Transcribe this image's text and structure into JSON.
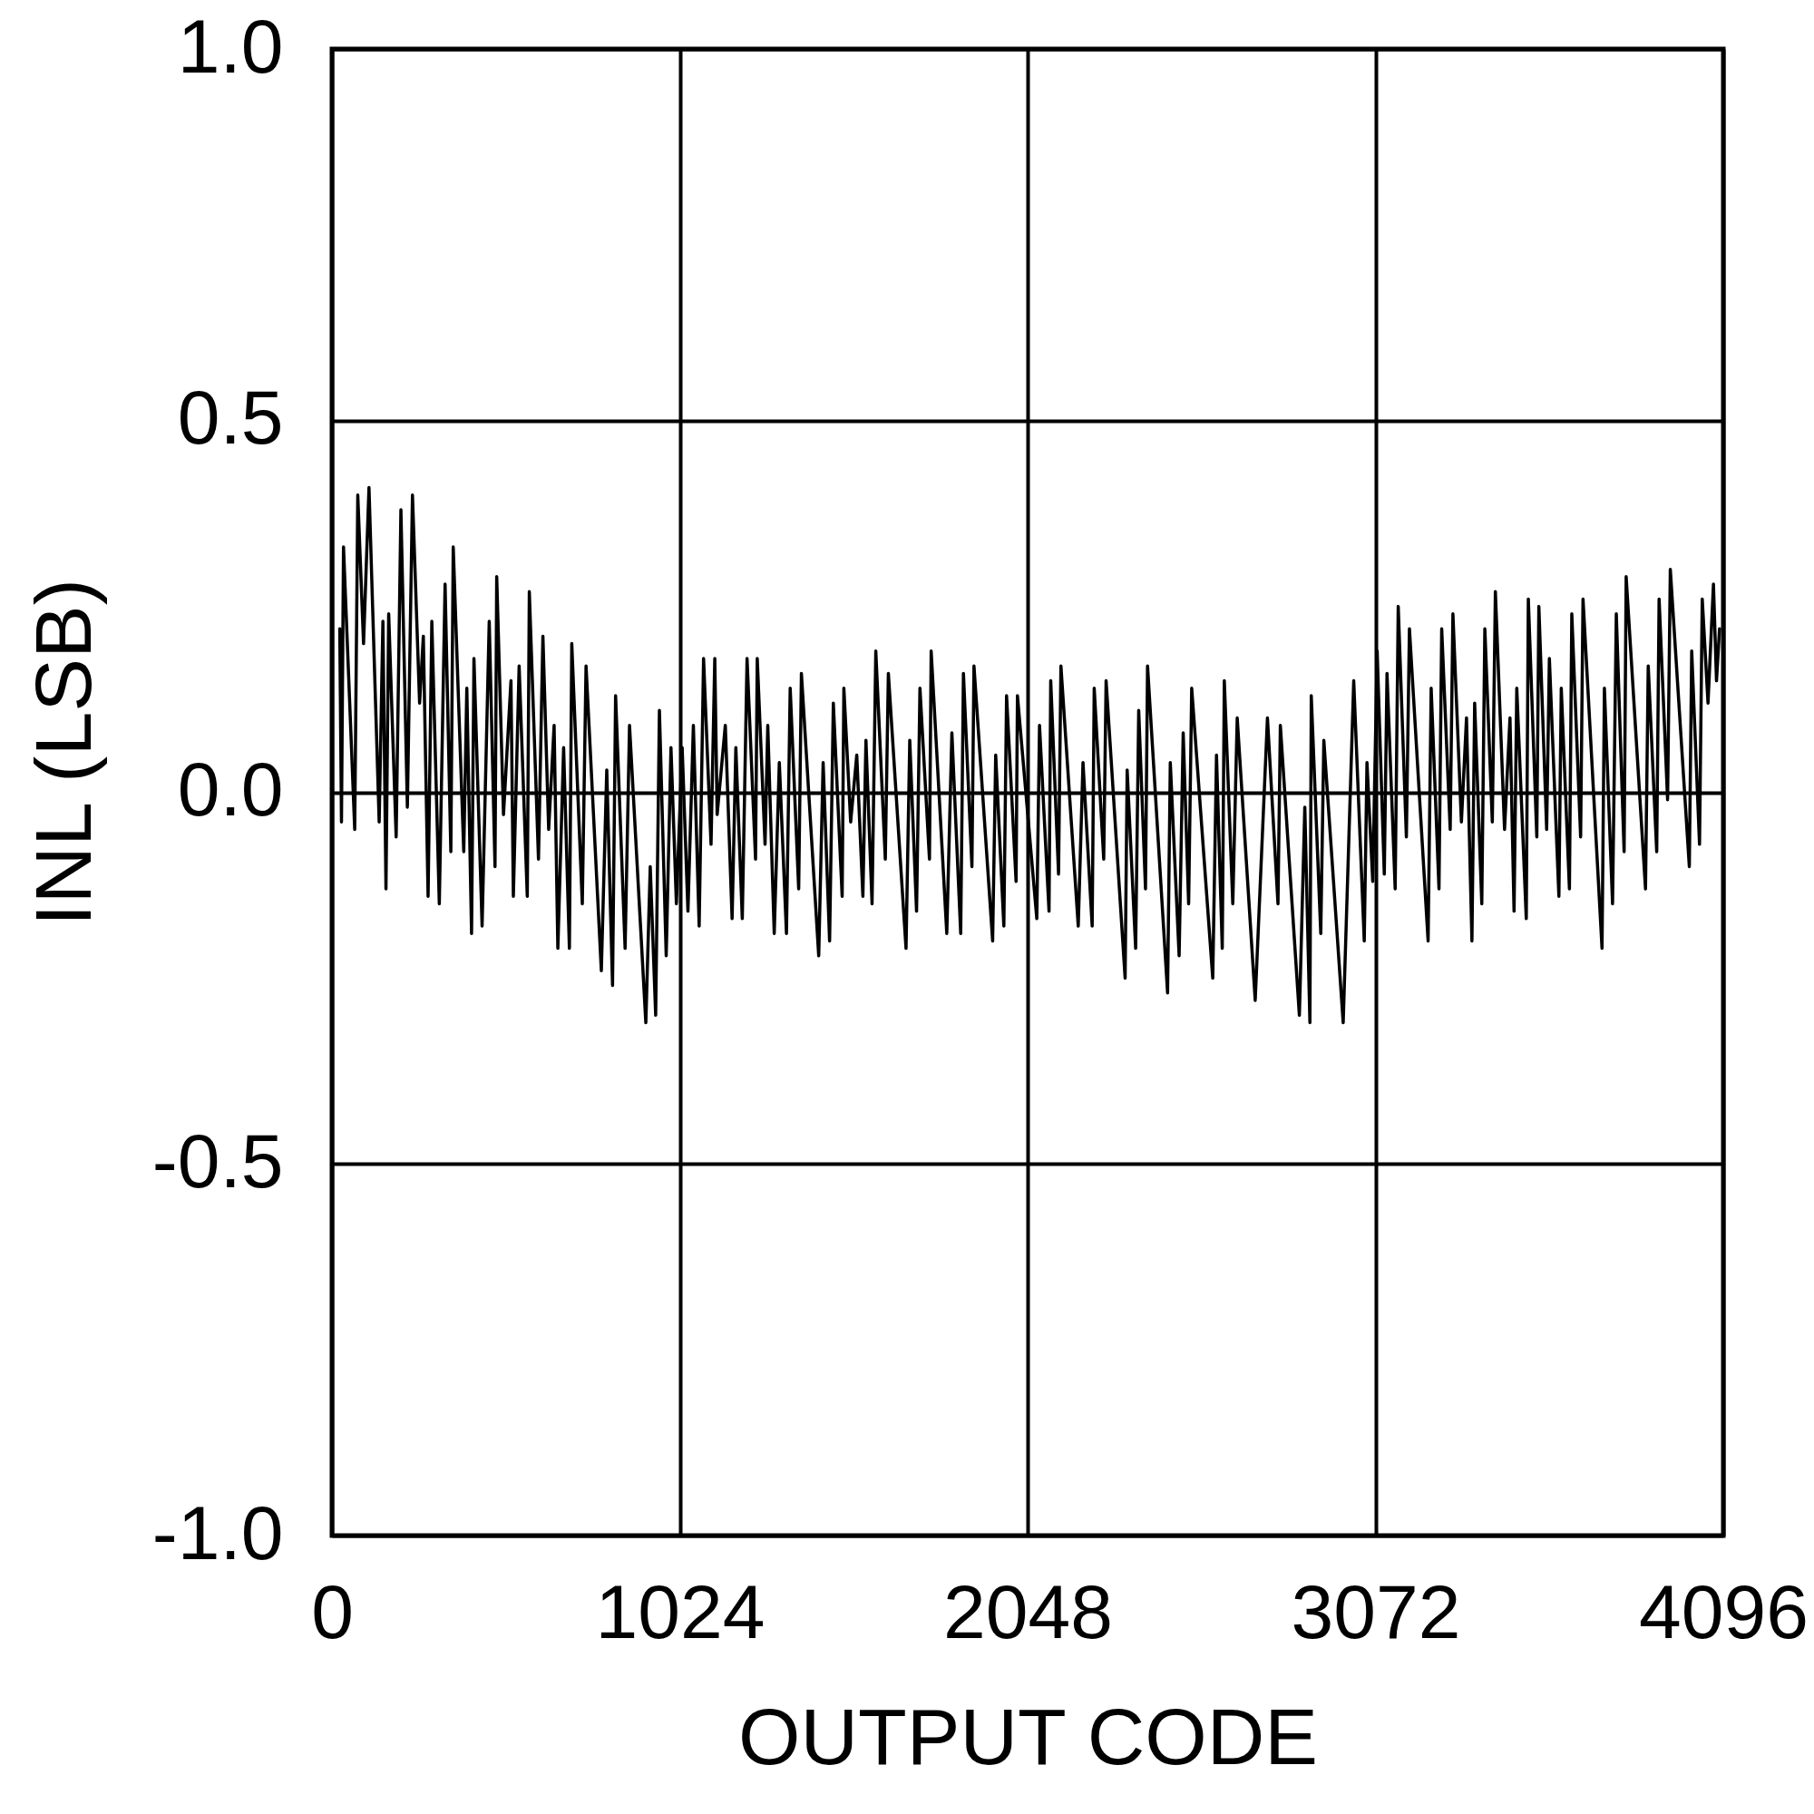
{
  "chart_data": {
    "type": "line",
    "xlabel": "OUTPUT CODE",
    "ylabel": "INL (LSB)",
    "xlim": [
      0,
      4096
    ],
    "xticks": [
      0,
      1024,
      2048,
      3072,
      4096
    ],
    "ylim": [
      -1,
      1
    ],
    "yticks": [
      {
        "value": -1,
        "label": "-1.0"
      },
      -0.5,
      {
        "value": 0,
        "label": "0.0"
      },
      0.5,
      {
        "value": 1,
        "label": "1.0"
      }
    ],
    "grid": true,
    "marker": "none",
    "line_style": "solid",
    "series": [
      {
        "color": "#000000",
        "x": [
          23,
          28,
          34,
          67,
          76,
          93,
          109,
          139,
          150,
          159,
          167,
          189,
          203,
          222,
          237,
          258,
          269,
          283,
          294,
          316,
          333,
          350,
          357,
          388,
          397,
          411,
          418,
          442,
          463,
          480,
          485,
          505,
          527,
          534,
          551,
          575,
          581,
          608,
          621,
          638,
          654,
          665,
          682,
          699,
          706,
          737,
          748,
          793,
          809,
          826,
          835,
          863,
          876,
          924,
          937,
          953,
          964,
          984,
          998,
          1014,
          1031,
          1048,
          1064,
          1081,
          1094,
          1116,
          1127,
          1134,
          1158,
          1178,
          1189,
          1208,
          1222,
          1247,
          1252,
          1275,
          1283,
          1302,
          1317,
          1338,
          1349,
          1374,
          1382,
          1433,
          1446,
          1465,
          1476,
          1502,
          1507,
          1527,
          1545,
          1563,
          1572,
          1590,
          1601,
          1629,
          1638,
          1690,
          1701,
          1721,
          1731,
          1759,
          1764,
          1810,
          1825,
          1851,
          1859,
          1884,
          1890,
          1945,
          1954,
          1978,
          1986,
          2014,
          2018,
          2075,
          2083,
          2111,
          2116,
          2139,
          2146,
          2197,
          2211,
          2238,
          2244,
          2272,
          2279,
          2335,
          2341,
          2366,
          2375,
          2395,
          2401,
          2460,
          2468,
          2494,
          2506,
          2522,
          2531,
          2593,
          2604,
          2621,
          2627,
          2652,
          2665,
          2718,
          2754,
          2785,
          2792,
          2848,
          2864,
          2879,
          2883,
          2911,
          2920,
          2977,
          3008,
          3039,
          3047,
          3064,
          3077,
          3098,
          3106,
          3130,
          3139,
          3163,
          3172,
          3227,
          3236,
          3259,
          3267,
          3292,
          3300,
          3325,
          3340,
          3356,
          3364,
          3385,
          3394,
          3416,
          3425,
          3452,
          3468,
          3480,
          3488,
          3516,
          3522,
          3547,
          3553,
          3576,
          3584,
          3612,
          3619,
          3643,
          3650,
          3676,
          3683,
          3739,
          3746,
          3770,
          3781,
          3804,
          3810,
          3867,
          3875,
          3900,
          3907,
          3932,
          3940,
          3996,
          4003,
          4026,
          4034,
          4051,
          4067,
          4076,
          4085
        ],
        "values": [
          0.22,
          -0.04,
          0.33,
          -0.05,
          0.4,
          0.2,
          0.41,
          -0.04,
          0.23,
          -0.13,
          0.24,
          -0.06,
          0.38,
          -0.02,
          0.4,
          0.12,
          0.21,
          -0.14,
          0.23,
          -0.15,
          0.28,
          -0.08,
          0.33,
          -0.08,
          0.14,
          -0.19,
          0.18,
          -0.18,
          0.23,
          -0.1,
          0.29,
          -0.03,
          0.15,
          -0.14,
          0.17,
          -0.14,
          0.27,
          -0.09,
          0.21,
          -0.05,
          0.09,
          -0.21,
          0.06,
          -0.21,
          0.2,
          -0.15,
          0.17,
          -0.24,
          0.03,
          -0.26,
          0.13,
          -0.21,
          0.09,
          -0.31,
          -0.1,
          -0.3,
          0.11,
          -0.22,
          0.06,
          -0.15,
          0.06,
          -0.16,
          0.09,
          -0.18,
          0.18,
          -0.07,
          0.18,
          -0.03,
          0.09,
          -0.17,
          0.06,
          -0.17,
          0.18,
          -0.09,
          0.18,
          -0.07,
          0.09,
          -0.19,
          0.04,
          -0.19,
          0.14,
          -0.13,
          0.16,
          -0.22,
          0.04,
          -0.2,
          0.12,
          -0.14,
          0.14,
          -0.04,
          0.05,
          -0.14,
          0.07,
          -0.15,
          0.19,
          -0.09,
          0.16,
          -0.21,
          0.07,
          -0.16,
          0.14,
          -0.09,
          0.19,
          -0.19,
          0.08,
          -0.19,
          0.16,
          -0.1,
          0.17,
          -0.2,
          0.05,
          -0.18,
          0.13,
          -0.12,
          0.13,
          -0.17,
          0.09,
          -0.16,
          0.15,
          -0.11,
          0.17,
          -0.18,
          0.04,
          -0.18,
          0.14,
          -0.09,
          0.15,
          -0.25,
          0.03,
          -0.21,
          0.11,
          -0.13,
          0.17,
          -0.27,
          0.04,
          -0.22,
          0.08,
          -0.15,
          0.14,
          -0.25,
          0.05,
          -0.21,
          0.15,
          -0.15,
          0.1,
          -0.28,
          0.1,
          -0.15,
          0.09,
          -0.3,
          -0.02,
          -0.31,
          0.13,
          -0.19,
          0.07,
          -0.31,
          0.15,
          -0.2,
          0.04,
          -0.12,
          0.19,
          -0.11,
          0.16,
          -0.13,
          0.25,
          -0.06,
          0.22,
          -0.2,
          0.14,
          -0.13,
          0.22,
          -0.05,
          0.24,
          -0.04,
          0.1,
          -0.2,
          0.12,
          -0.15,
          0.22,
          -0.04,
          0.27,
          -0.05,
          0.1,
          -0.16,
          0.14,
          -0.17,
          0.26,
          -0.06,
          0.25,
          -0.05,
          0.18,
          -0.14,
          0.14,
          -0.13,
          0.24,
          -0.06,
          0.26,
          -0.21,
          0.14,
          -0.15,
          0.24,
          -0.08,
          0.29,
          -0.13,
          0.17,
          -0.08,
          0.26,
          -0.01,
          0.3,
          -0.1,
          0.19,
          -0.07,
          0.26,
          0.12,
          0.28,
          0.15,
          0.22
        ]
      }
    ]
  }
}
